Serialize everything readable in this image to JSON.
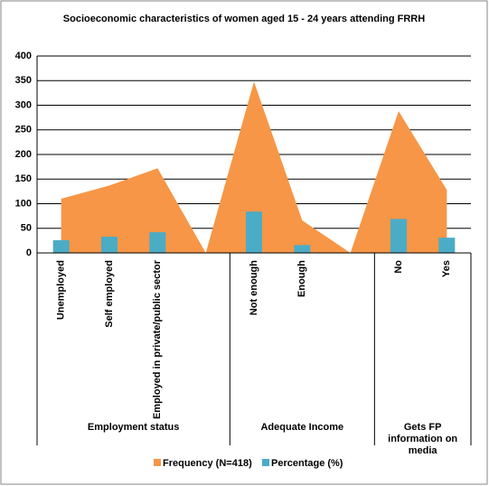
{
  "chart_data": {
    "type": "area_bar",
    "title": "Socioeconomic  characteristics of women aged 15 - 24 years attending FRRH",
    "groups": [
      {
        "name": "Employment status",
        "categories": [
          "Unemployed",
          "Self employed",
          "Employed in private/public sector",
          null
        ]
      },
      {
        "name": "Adequate Income",
        "categories": [
          "Not enough",
          "Enough",
          null
        ]
      },
      {
        "name": "Gets FP information on media",
        "categories": [
          "No",
          "Yes"
        ]
      }
    ],
    "series": [
      {
        "name": "Frequency (N=418)",
        "type": "area",
        "color": "#f79646",
        "values": [
          110,
          137,
          172,
          0,
          348,
          66,
          0,
          288,
          128
        ]
      },
      {
        "name": "Percentage (%)",
        "type": "bar",
        "color": "#4bacc6",
        "values": [
          26,
          33,
          42,
          null,
          84,
          16,
          null,
          69,
          31
        ]
      }
    ],
    "ylim": [
      0,
      400
    ],
    "yticks": [
      0,
      50,
      100,
      150,
      200,
      250,
      300,
      350,
      400
    ],
    "grid": true,
    "legend": "bottom"
  }
}
